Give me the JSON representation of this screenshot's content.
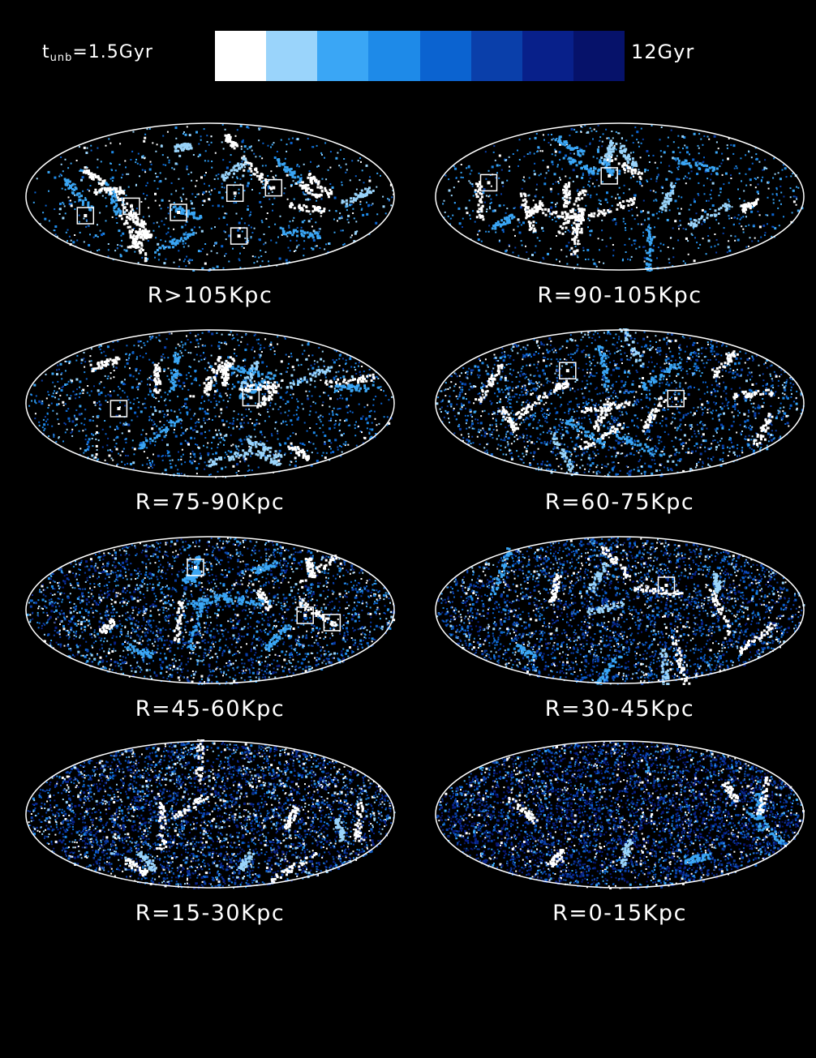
{
  "colorbar": {
    "min_label_main": "t",
    "min_label_sub": "unb",
    "min_label_value": "=1.5Gyr",
    "max_label": "12Gyr",
    "colors": [
      "#ffffff",
      "#9ad4fb",
      "#3aa6f5",
      "#1e8ae8",
      "#0b63d0",
      "#0a3faa",
      "#08208a",
      "#06126a"
    ]
  },
  "panels": [
    {
      "label": "R>105Kpc",
      "density": 0.9,
      "palette": [
        0,
        1,
        1,
        2,
        2,
        3,
        4,
        4
      ],
      "boxes": 6
    },
    {
      "label": "R=90-105Kpc",
      "density": 1.0,
      "palette": [
        0,
        1,
        2,
        2,
        3,
        3,
        4,
        5
      ],
      "boxes": 2
    },
    {
      "label": "R=75-90Kpc",
      "density": 1.6,
      "palette": [
        0,
        1,
        2,
        3,
        3,
        4,
        4,
        5
      ],
      "boxes": 2
    },
    {
      "label": "R=60-75Kpc",
      "density": 2.4,
      "palette": [
        0,
        1,
        2,
        3,
        4,
        4,
        5,
        5
      ],
      "boxes": 2
    },
    {
      "label": "R=45-60Kpc",
      "density": 3.2,
      "palette": [
        0,
        1,
        2,
        3,
        4,
        5,
        5,
        6
      ],
      "boxes": 3
    },
    {
      "label": "R=30-45Kpc",
      "density": 3.8,
      "palette": [
        0,
        1,
        3,
        4,
        4,
        5,
        5,
        6
      ],
      "boxes": 1
    },
    {
      "label": "R=15-30Kpc",
      "density": 4.6,
      "palette": [
        0,
        1,
        3,
        4,
        5,
        5,
        6,
        6
      ],
      "boxes": 0
    },
    {
      "label": "R=0-15Kpc",
      "density": 5.2,
      "palette": [
        0,
        2,
        4,
        5,
        5,
        6,
        6,
        7
      ],
      "boxes": 0
    }
  ]
}
